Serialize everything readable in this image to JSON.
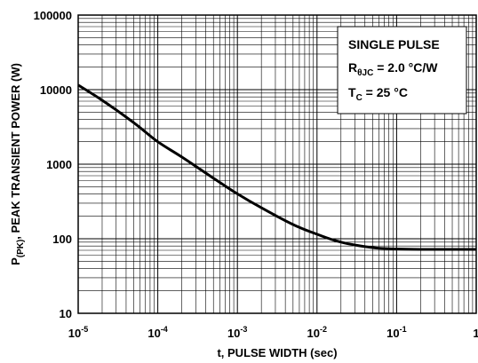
{
  "chart_data": {
    "type": "line",
    "x_scale": "log",
    "y_scale": "log",
    "xlim": [
      1e-05,
      1
    ],
    "ylim": [
      10,
      100000
    ],
    "grid": true,
    "xlabel": "t, PULSE WIDTH (sec)",
    "ylabel": {
      "pre": "P",
      "sub": "(PK)",
      "post": ", PEAK TRANSIENT POWER (W)"
    },
    "x_ticks": [
      {
        "base": "10",
        "exp": "-5"
      },
      {
        "base": "10",
        "exp": "-4"
      },
      {
        "base": "10",
        "exp": "-3"
      },
      {
        "base": "10",
        "exp": "-2"
      },
      {
        "base": "10",
        "exp": "-1"
      },
      {
        "base": "1",
        "exp": ""
      }
    ],
    "y_ticks": [
      "10",
      "100",
      "1000",
      "10000",
      "100000"
    ],
    "series": [
      {
        "x": [
          1e-05,
          2e-05,
          5e-05,
          0.0001,
          0.0002,
          0.0005,
          0.001,
          0.002,
          0.005,
          0.01,
          0.02,
          0.05,
          0.1,
          0.2,
          0.5,
          1.0
        ],
        "y": [
          11500,
          7200,
          3600,
          2000,
          1250,
          650,
          400,
          260,
          155,
          115,
          90,
          76,
          73,
          72,
          72,
          72
        ]
      }
    ],
    "annotation": {
      "line1": "SINGLE PULSE",
      "line2_pre": "R",
      "line2_sub": "θJC",
      "line2_post": " = 2.0 °C/W",
      "line3_pre": "T",
      "line3_sub": "C",
      "line3_post": " = 25 °C"
    }
  }
}
